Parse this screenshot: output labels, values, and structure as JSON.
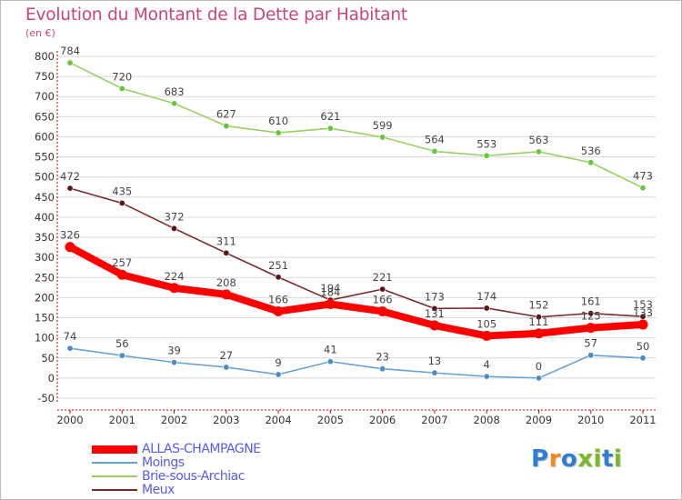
{
  "title": "Evolution du Montant de la Dette par Habitant",
  "subtitle": "(en €)",
  "logo": {
    "text": "Proxiti",
    "colors": [
      "#2f7fd0",
      "#f08a1c",
      "#2f7fd0",
      "#7ab828",
      "#7ab828",
      "#2f7fd0",
      "#7ab828"
    ]
  },
  "colors": {
    "title": "#c8457a",
    "axis": "#cc0000",
    "grid": "#d8d8d8",
    "legend_text": "#5a5aee"
  },
  "chart_data": {
    "type": "line",
    "title": "Evolution du Montant de la Dette par Habitant",
    "ylabel": "(en €)",
    "xlabel": "",
    "x": [
      "2000",
      "2001",
      "2002",
      "2003",
      "2004",
      "2005",
      "2006",
      "2007",
      "2008",
      "2009",
      "2010",
      "2011"
    ],
    "ylim": [
      -50,
      800
    ],
    "yticks": [
      -50,
      0,
      50,
      100,
      150,
      200,
      250,
      300,
      350,
      400,
      450,
      500,
      550,
      600,
      650,
      700,
      750,
      800
    ],
    "grid": "horizontal",
    "legend_position": "bottom-left",
    "series": [
      {
        "name": "Brie-sous-Archiac",
        "color": "#99d063",
        "marker_color": "#66c63a",
        "values": [
          784,
          720,
          683,
          627,
          610,
          621,
          599,
          564,
          553,
          563,
          536,
          473
        ]
      },
      {
        "name": "Meux",
        "color": "#7a2a2a",
        "marker_color": "#5e1414",
        "values": [
          472,
          435,
          372,
          311,
          251,
          194,
          221,
          173,
          174,
          152,
          161,
          153
        ]
      },
      {
        "name": "Moings",
        "color": "#6aa2cf",
        "marker_color": "#4a8cc7",
        "values": [
          74,
          56,
          39,
          27,
          9,
          41,
          23,
          13,
          4,
          0,
          57,
          50
        ]
      },
      {
        "name": "ALLAS-CHAMPAGNE",
        "color": "#ff0000",
        "marker_color": "#ff0000",
        "values": [
          326,
          257,
          224,
          208,
          166,
          184,
          166,
          131,
          105,
          111,
          125,
          133
        ]
      }
    ],
    "legend_order": [
      "ALLAS-CHAMPAGNE",
      "Moings",
      "Brie-sous-Archiac",
      "Meux"
    ]
  }
}
